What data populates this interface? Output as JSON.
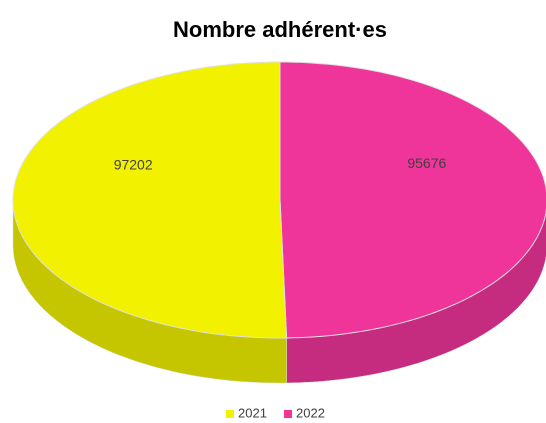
{
  "chart_data": {
    "type": "pie",
    "title": "Nombre adhérent·es",
    "categories": [
      "2021",
      "2022"
    ],
    "values": [
      97202,
      95676
    ],
    "colors": [
      "#f2f200",
      "#f0359a"
    ],
    "legend": "bottom"
  }
}
